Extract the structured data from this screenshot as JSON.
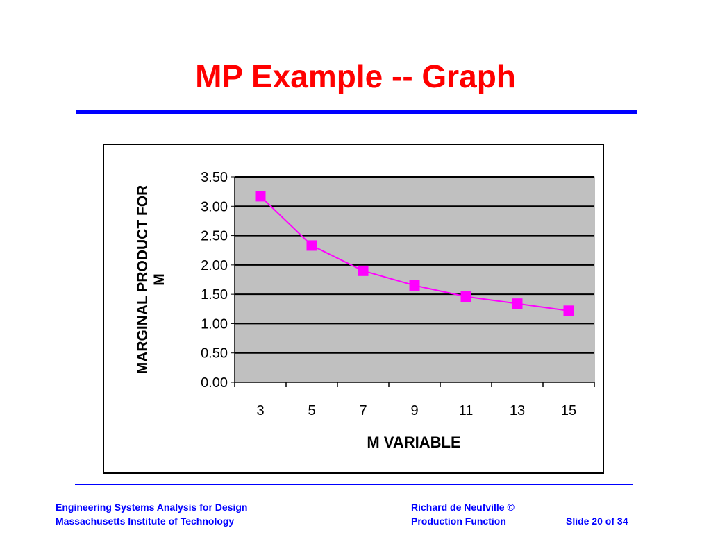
{
  "slide": {
    "title": "MP Example -- Graph",
    "title_color": "#ff0000",
    "rule_color": "#0000ff"
  },
  "footer": {
    "left_line1": "Engineering Systems Analysis for Design",
    "left_line2": "Massachusetts Institute of Technology",
    "right_line1": "Richard de Neufville  ©",
    "right_line2": "Production Function",
    "slide_number": "Slide 20 of 34",
    "text_color": "#0000ff"
  },
  "chart_data": {
    "type": "line",
    "title": "",
    "xlabel": "M VARIABLE",
    "ylabel_lines": [
      "MARGINAL PRODUCT FOR",
      "M"
    ],
    "categories": [
      "3",
      "5",
      "7",
      "9",
      "11",
      "13",
      "15"
    ],
    "series": [
      {
        "values": [
          3.17,
          2.33,
          1.9,
          1.65,
          1.46,
          1.34,
          1.22
        ],
        "color": "#ff00ff"
      }
    ],
    "ylim": [
      0,
      3.5
    ],
    "yticks": [
      "0.00",
      "0.50",
      "1.00",
      "1.50",
      "2.00",
      "2.50",
      "3.00",
      "3.50"
    ],
    "grid": true,
    "plot_background": "#c0c0c0",
    "legend": "none"
  }
}
